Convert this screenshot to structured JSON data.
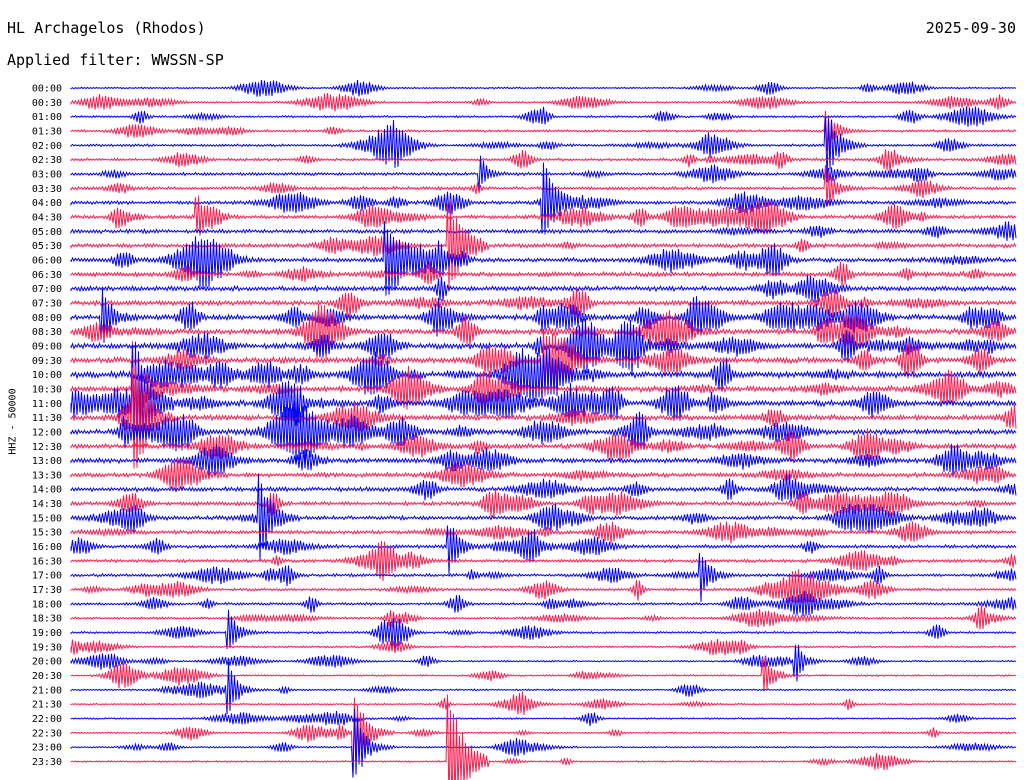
{
  "header": {
    "station": "HL Archagelos (Rhodos)",
    "date": "2025-09-30",
    "filter": "Applied filter: WWSSN-SP"
  },
  "chart_data": {
    "type": "line",
    "title": "HL Archagelos (Rhodos)",
    "ylabel": "HHZ - 50000",
    "row_labels": [
      "00:00",
      "00:30",
      "01:00",
      "01:30",
      "02:00",
      "02:30",
      "03:00",
      "03:30",
      "04:00",
      "04:30",
      "05:00",
      "05:30",
      "06:00",
      "06:30",
      "07:00",
      "07:30",
      "08:00",
      "08:30",
      "09:00",
      "09:30",
      "10:00",
      "10:30",
      "11:00",
      "11:30",
      "12:00",
      "12:30",
      "13:00",
      "13:30",
      "14:00",
      "14:30",
      "15:00",
      "15:30",
      "16:00",
      "16:30",
      "17:00",
      "17:30",
      "18:00",
      "18:30",
      "19:00",
      "19:30",
      "20:00",
      "20:30",
      "21:00",
      "21:30",
      "22:00",
      "22:30",
      "23:00",
      "23:30"
    ],
    "colors": [
      "#0000ff",
      "#ff1a4d"
    ],
    "events": [
      {
        "row": "01:30",
        "minute": 24,
        "amp": 0.6
      },
      {
        "row": "02:00",
        "minute": 24,
        "amp": 1.2
      },
      {
        "row": "03:00",
        "minute": 13,
        "amp": 0.3
      },
      {
        "row": "03:30",
        "minute": 24,
        "amp": 0.6
      },
      {
        "row": "04:00",
        "minute": 15,
        "amp": 1.6
      },
      {
        "row": "04:30",
        "minute": 4,
        "amp": 0.5
      },
      {
        "row": "05:30",
        "minute": 12,
        "amp": 2.0
      },
      {
        "row": "06:00",
        "minute": 10,
        "amp": 1.8
      },
      {
        "row": "08:00",
        "minute": 1,
        "amp": 0.9
      },
      {
        "row": "09:30",
        "minute": 15,
        "amp": 1.1
      },
      {
        "row": "10:30",
        "minute": 2,
        "amp": 1.5
      },
      {
        "row": "11:00",
        "minute": 2,
        "amp": 2.2
      },
      {
        "row": "11:30",
        "minute": 2,
        "amp": 1.6
      },
      {
        "row": "15:00",
        "minute": 6,
        "amp": 1.4
      },
      {
        "row": "16:00",
        "minute": 12,
        "amp": 0.8
      },
      {
        "row": "17:00",
        "minute": 20,
        "amp": 0.7
      },
      {
        "row": "19:00",
        "minute": 5,
        "amp": 0.6
      },
      {
        "row": "20:00",
        "minute": 23,
        "amp": 0.5
      },
      {
        "row": "20:30",
        "minute": 22,
        "amp": 0.6
      },
      {
        "row": "21:00",
        "minute": 5,
        "amp": 0.6
      },
      {
        "row": "22:30",
        "minute": 9,
        "amp": 1.4
      },
      {
        "row": "23:00",
        "minute": 9,
        "amp": 1.2
      },
      {
        "row": "23:30",
        "minute": 12,
        "amp": 2.5
      }
    ]
  }
}
